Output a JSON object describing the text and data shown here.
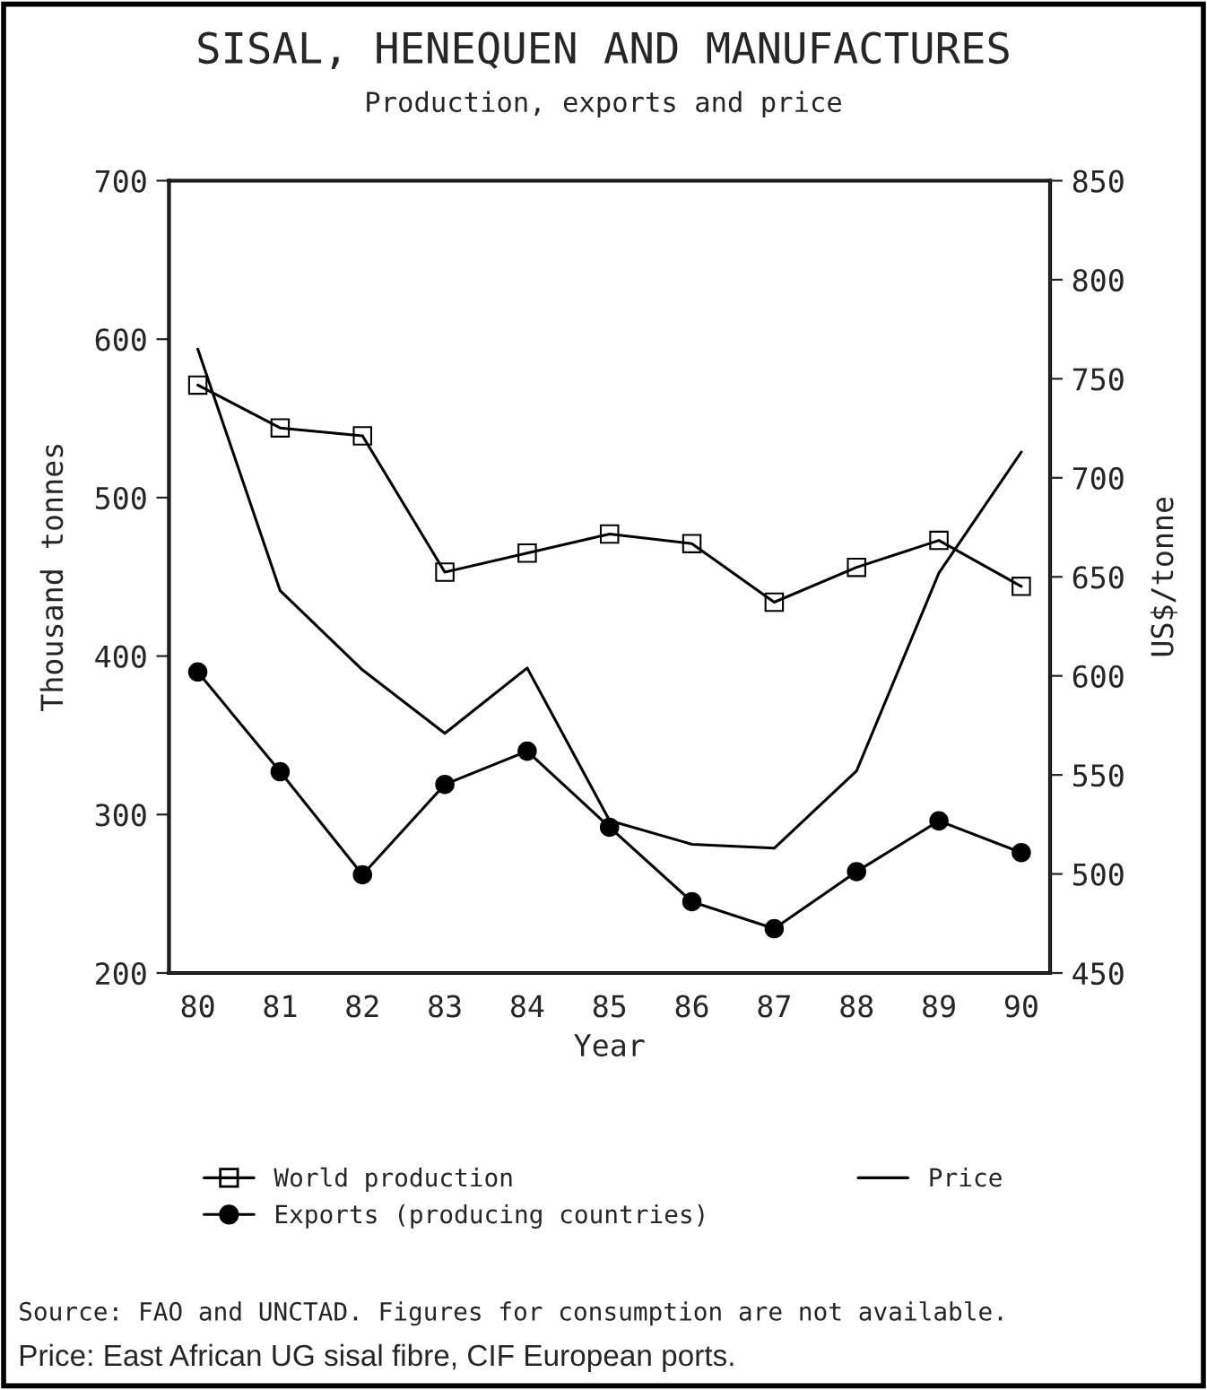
{
  "chart_data": {
    "type": "line",
    "title": "SISAL, HENEQUEN AND MANUFACTURES",
    "subtitle": "Production, exports and price",
    "xlabel": "Year",
    "ylabel": "Thousand tonnes",
    "y2label": "US$/tonne",
    "categories": [
      "80",
      "81",
      "82",
      "83",
      "84",
      "85",
      "86",
      "87",
      "88",
      "89",
      "90"
    ],
    "series": [
      {
        "name": "World production",
        "color": "#000000",
        "marker": "square",
        "values": [
          571,
          544,
          539,
          453,
          465,
          477,
          471,
          434,
          456,
          473,
          444
        ]
      },
      {
        "name": "Exports (producing countries)",
        "color": "#000000",
        "marker": "circle",
        "values": [
          390,
          327,
          262,
          319,
          340,
          292,
          245,
          228,
          264,
          296,
          276
        ]
      },
      {
        "name": "Price",
        "color": "#000000",
        "marker": "none",
        "axis": "y2",
        "values": [
          765,
          643,
          603,
          571,
          604,
          527,
          515,
          513,
          552,
          652,
          713
        ]
      }
    ],
    "ylim": [
      200,
      700
    ],
    "yticks": [
      200,
      300,
      400,
      500,
      600,
      700
    ],
    "y2lim": [
      450,
      850
    ],
    "y2ticks": [
      450,
      500,
      550,
      600,
      650,
      700,
      750,
      800,
      850
    ],
    "grid": false,
    "legend": "bottom",
    "line_style": "solid",
    "annotations": [
      "Source: FAO and UNCTAD. Figures for consumption are not available.",
      "Price: East African UG sisal fibre, CIF European ports."
    ]
  }
}
